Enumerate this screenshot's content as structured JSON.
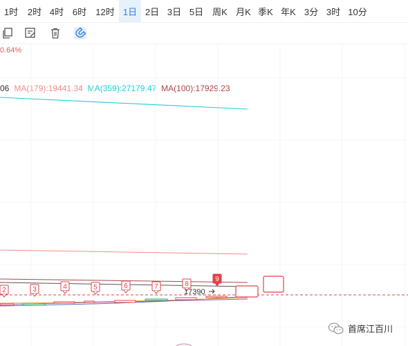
{
  "timeframes": [
    {
      "label": "1时",
      "active": false
    },
    {
      "label": "2时",
      "active": false
    },
    {
      "label": "4时",
      "active": false
    },
    {
      "label": "6时",
      "active": false
    },
    {
      "label": "12时",
      "active": false
    },
    {
      "label": "1日",
      "active": true
    },
    {
      "label": "2日",
      "active": false
    },
    {
      "label": "3日",
      "active": false
    },
    {
      "label": "5日",
      "active": false
    },
    {
      "label": "周K",
      "active": false
    },
    {
      "label": "月K",
      "active": false
    },
    {
      "label": "季K",
      "active": false
    },
    {
      "label": "年K",
      "active": false
    },
    {
      "label": "3分",
      "active": false
    },
    {
      "label": "3时",
      "active": false
    },
    {
      "label": "10分",
      "active": false
    }
  ],
  "tools": [
    {
      "icon": "copy-icon"
    },
    {
      "icon": "edit-note-icon"
    },
    {
      "icon": "trash-icon"
    },
    {
      "icon": "magnet-icon",
      "active": true
    }
  ],
  "change_percent": "0.64%",
  "ma": {
    "prefix": "06",
    "items": [
      {
        "label": "MA(179):19441.34",
        "color": "#f28b8b"
      },
      {
        "label": "MA(359):27179.47",
        "color": "#1ccfd8"
      },
      {
        "label": "MA(100):17929.23",
        "color": "#b0424a"
      }
    ]
  },
  "markers": [
    "2",
    "3",
    "4",
    "5",
    "6",
    "7",
    "8",
    "9"
  ],
  "price_label": "17390",
  "watermark": {
    "text": "首席江百川",
    "icon": "wechat-icon"
  },
  "colors": {
    "accent": "#2f7fe3",
    "ma179": "#f28b8b",
    "ma359": "#1ccfd8",
    "ma100": "#b0424a",
    "marker": "#e2404a"
  }
}
